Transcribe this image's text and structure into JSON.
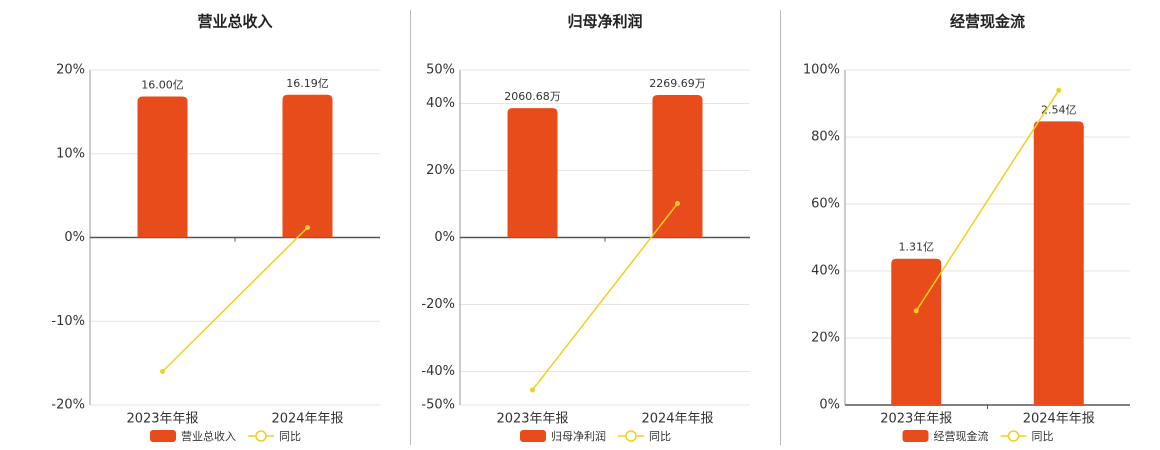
{
  "chart_data": [
    {
      "type": "bar-line",
      "title": "营业总收入",
      "categories": [
        "2023年年报",
        "2024年年报"
      ],
      "series": [
        {
          "name": "营业总收入",
          "color": "#e84c1a",
          "axis": "y2",
          "values": [
            16.0,
            16.19
          ],
          "value_labels": [
            "16.00亿",
            "16.19亿"
          ]
        },
        {
          "name": "同比",
          "color": "#f2d01e",
          "values": [
            -16.0,
            1.19
          ]
        }
      ],
      "ylim": [
        -20,
        20
      ],
      "yticks": [
        {
          "value": -20,
          "label": "-20%"
        },
        {
          "value": -10,
          "label": "-10%"
        },
        {
          "value": 0,
          "label": "0%"
        },
        {
          "value": 10,
          "label": "10%"
        },
        {
          "value": 20,
          "label": "20%"
        }
      ],
      "y2lim": [
        -19,
        19
      ],
      "grid": true
    },
    {
      "type": "bar-line",
      "title": "归母净利润",
      "categories": [
        "2023年年报",
        "2024年年报"
      ],
      "series": [
        {
          "name": "归母净利润",
          "color": "#e84c1a",
          "axis": "y2",
          "values": [
            2060.68,
            2269.69
          ],
          "value_labels": [
            "2060.68万",
            "2269.69万"
          ]
        },
        {
          "name": "同比",
          "color": "#f2d01e",
          "values": [
            -45.5,
            10.14
          ]
        }
      ],
      "ylim": [
        -50,
        50
      ],
      "yticks": [
        {
          "value": -50,
          "label": "-50%"
        },
        {
          "value": -40,
          "label": "-40%"
        },
        {
          "value": -20,
          "label": "-20%"
        },
        {
          "value": 0,
          "label": "0%"
        },
        {
          "value": 20,
          "label": "20%"
        },
        {
          "value": 40,
          "label": "40%"
        },
        {
          "value": 50,
          "label": "50%"
        }
      ],
      "y2lim": [
        -2667,
        2667
      ],
      "grid": true
    },
    {
      "type": "bar-line",
      "title": "经营现金流",
      "categories": [
        "2023年年报",
        "2024年年报"
      ],
      "series": [
        {
          "name": "经营现金流",
          "color": "#e84c1a",
          "axis": "y2",
          "values": [
            1.31,
            2.54
          ],
          "value_labels": [
            "1.31亿",
            "2.54亿"
          ]
        },
        {
          "name": "同比",
          "color": "#f2d01e",
          "values": [
            28.1,
            93.9
          ]
        }
      ],
      "ylim": [
        0,
        100
      ],
      "yticks": [
        {
          "value": 0,
          "label": "0%"
        },
        {
          "value": 20,
          "label": "20%"
        },
        {
          "value": 40,
          "label": "40%"
        },
        {
          "value": 60,
          "label": "60%"
        },
        {
          "value": 80,
          "label": "80%"
        },
        {
          "value": 100,
          "label": "100%"
        }
      ],
      "y2lim": [
        0,
        3
      ],
      "grid": true
    }
  ]
}
